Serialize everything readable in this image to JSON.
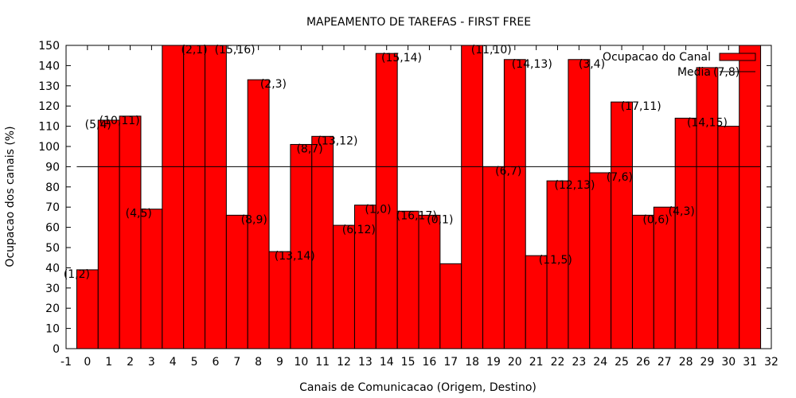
{
  "chart_data": {
    "type": "bar",
    "title": "MAPEAMENTO DE TAREFAS - FIRST FREE",
    "xlabel": "Canais de Comunicacao (Origem, Destino)",
    "ylabel": "Ocupacao dos canais (%)",
    "xlim": [
      -1,
      32
    ],
    "ylim": [
      0,
      150
    ],
    "x_ticks": [
      -1,
      0,
      1,
      2,
      3,
      4,
      5,
      6,
      7,
      8,
      9,
      10,
      11,
      12,
      13,
      14,
      15,
      16,
      17,
      18,
      19,
      20,
      21,
      22,
      23,
      24,
      25,
      26,
      27,
      28,
      29,
      30,
      31,
      32
    ],
    "y_ticks": [
      0,
      10,
      20,
      30,
      40,
      50,
      60,
      70,
      80,
      90,
      100,
      110,
      120,
      130,
      140,
      150
    ],
    "grid": false,
    "legend_position": "top-right",
    "bar_color": "#ff0000",
    "line_color": "#000000",
    "series": [
      {
        "name": "Ocupacao do Canal",
        "type": "bar",
        "x": [
          0,
          1,
          2,
          3,
          4,
          5,
          6,
          7,
          8,
          9,
          10,
          11,
          12,
          13,
          14,
          15,
          16,
          17,
          18,
          19,
          20,
          21,
          22,
          23,
          24,
          25,
          26,
          27,
          28,
          29,
          30,
          31
        ],
        "values": [
          39,
          113,
          115,
          69,
          150,
          150,
          150,
          66,
          133,
          48,
          101,
          105,
          61,
          71,
          146,
          68,
          66,
          42,
          150,
          90,
          143,
          46,
          83,
          143,
          87,
          122,
          66,
          70,
          114,
          139,
          110,
          150
        ],
        "labels": [
          "(1,2)",
          "(5,4)",
          "(10,11)",
          "(4,5)",
          "",
          "(2,1)",
          "(15,16)",
          "(8,9)",
          "(2,3)",
          "(13,14)",
          "(8,7)",
          "(13,12)",
          "(6,12)",
          "(1,0)",
          "(15,14)",
          "(16,17)",
          "(0,1)",
          "",
          "(11,10)",
          "(6,7)",
          "(14,13)",
          "(11,5)",
          "(12,13)",
          "(3,4)",
          "(7,6)",
          "(17,11)",
          "(0,6)",
          "(4,3)",
          "(14,15)",
          "(7,8)",
          "",
          ""
        ],
        "label_x": [
          -0.5,
          0.5,
          1.5,
          2.4,
          null,
          5.0,
          6.9,
          7.8,
          8.7,
          9.7,
          10.4,
          11.7,
          12.7,
          13.6,
          14.7,
          15.4,
          16.5,
          null,
          18.9,
          19.7,
          20.8,
          21.9,
          22.8,
          23.6,
          24.9,
          25.9,
          26.6,
          27.8,
          29.0,
          29.9,
          null,
          null
        ]
      },
      {
        "name": "Media",
        "type": "line",
        "value": 90
      }
    ]
  }
}
